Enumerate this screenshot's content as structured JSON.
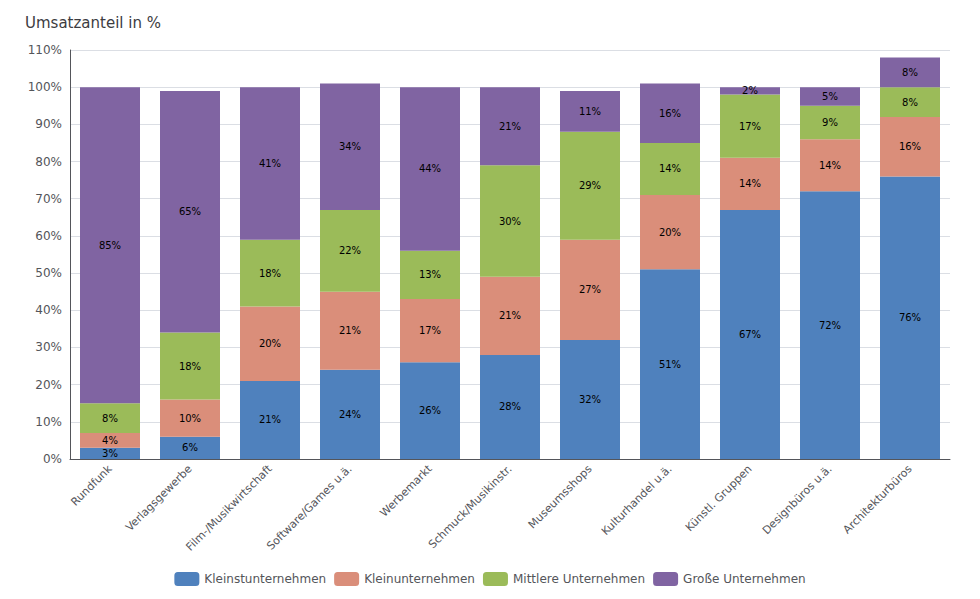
{
  "chart_data": {
    "type": "bar",
    "title": "Umsatzanteil in %",
    "categories": [
      "Rundfunk",
      "Verlagsgewerbe",
      "Film-/Musikwirtschaft",
      "Software/Games u.ä.",
      "Werbemarkt",
      "Schmuck/Musikinstr.",
      "Museumsshops",
      "Kulturhandel u.ä.",
      "Künstl. Gruppen",
      "Designbüros u.ä.",
      "Architekturbüros"
    ],
    "series": [
      {
        "name": "Kleinstunternehmen",
        "color": "#4F81BD",
        "values": [
          3,
          6,
          21,
          24,
          26,
          28,
          32,
          51,
          67,
          72,
          76
        ],
        "value_labels": [
          "3%",
          "6%",
          "21%",
          "24%",
          "26%",
          "28%",
          "32%",
          "51%",
          "67%",
          "72%",
          "76%"
        ]
      },
      {
        "name": "Kleinunternehmen",
        "color": "#DA8E7A",
        "values": [
          4,
          10,
          20,
          21,
          17,
          21,
          27,
          20,
          14,
          14,
          16
        ],
        "value_labels": [
          "4%",
          "10%",
          "20%",
          "21%",
          "17%",
          "21%",
          "27%",
          "20%",
          "14%",
          "14%",
          "16%"
        ]
      },
      {
        "name": "Mittlere Unternehmen",
        "color": "#9BBB59",
        "values": [
          8,
          18,
          18,
          22,
          13,
          30,
          29,
          14,
          17,
          9,
          8
        ],
        "value_labels": [
          "8%",
          "18%",
          "18%",
          "22%",
          "13%",
          "30%",
          "29%",
          "14%",
          "17%",
          "9%",
          "8%"
        ]
      },
      {
        "name": "Große Unternehmen",
        "color": "#8064A2",
        "values": [
          85,
          65,
          41,
          34,
          44,
          21,
          11,
          16,
          2,
          5,
          8
        ],
        "value_labels": [
          "85%",
          "65%",
          "41%",
          "34%",
          "44%",
          "21%",
          "11%",
          "16%",
          "2%",
          "5%",
          "8%"
        ]
      }
    ],
    "stacked": true,
    "data_labels": true,
    "ylim": [
      0,
      110
    ],
    "yticks": [
      {
        "value": 0,
        "label": "0%"
      },
      {
        "value": 10,
        "label": "10%"
      },
      {
        "value": 20,
        "label": "20%"
      },
      {
        "value": 30,
        "label": "30%"
      },
      {
        "value": 40,
        "label": "40%"
      },
      {
        "value": 50,
        "label": "50%"
      },
      {
        "value": 60,
        "label": "60%"
      },
      {
        "value": 70,
        "label": "70%"
      },
      {
        "value": 80,
        "label": "80%"
      },
      {
        "value": 90,
        "label": "90%"
      },
      {
        "value": 100,
        "label": "100%"
      },
      {
        "value": 110,
        "label": "110%"
      }
    ],
    "grid": true,
    "legend": "bottom"
  }
}
